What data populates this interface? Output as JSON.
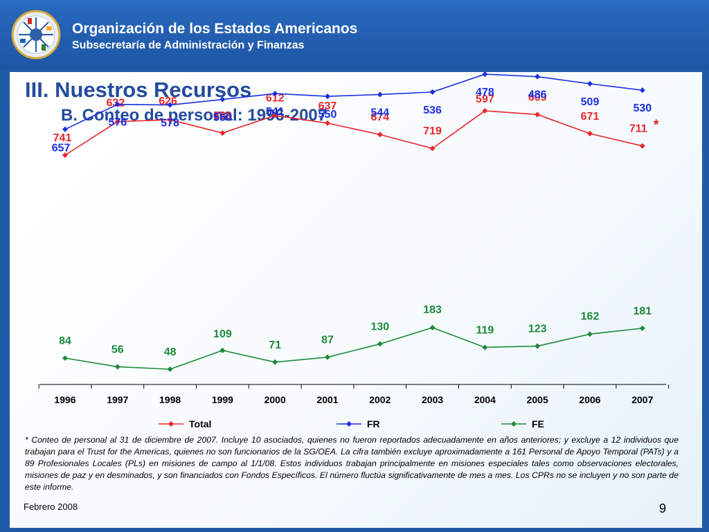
{
  "header": {
    "org_name": "Organización de los Estados Americanos",
    "org_subtitle": "Subsecretaría de Administración y Finanzas"
  },
  "slide": {
    "title": "III. Nuestros Recursos",
    "subtitle": "B. Conteo de personal: 1996-2007",
    "footnote": "* Conteo de personal al 31 de diciembre de 2007. Incluye 10 asociados, quienes no fueron reportados adecuadamente en años anteriores; y excluye a 12 individuos que trabajan para el Trust for the Americas, quienes no son funcionarios de la SG/OEA. La cifra también excluye aproximadamente a 161 Personal de Apoyo Temporal (PATs) y a 89 Profesionales Locales (PLs) en misiones de campo al 1/1/08. Estos individuos trabajan principalmente en misiones especiales tales como observaciones electorales, misiones de paz y en desminados, y son financiados con Fondos Específicos. El número fluctúa significativamente de mes a mes. Los CPRs no se incluyen y no son parte de este informe.",
    "date": "Febrero 2008",
    "page": "9"
  },
  "chart_data": {
    "type": "line",
    "categories": [
      "1996",
      "1997",
      "1998",
      "1999",
      "2000",
      "2001",
      "2002",
      "2003",
      "2004",
      "2005",
      "2006",
      "2007"
    ],
    "series": [
      {
        "name": "Total",
        "color": "#e8262c",
        "values": [
          741,
          632,
          626,
          669,
          612,
          637,
          674,
          719,
          597,
          609,
          671,
          711
        ]
      },
      {
        "name": "FR",
        "color": "#1a2ee0",
        "values": [
          657,
          576,
          578,
          560,
          541,
          550,
          544,
          536,
          478,
          486,
          509,
          530
        ]
      },
      {
        "name": "FE",
        "color": "#1e8a3a",
        "values": [
          84,
          56,
          48,
          109,
          71,
          87,
          130,
          183,
          119,
          123,
          162,
          181
        ]
      }
    ],
    "annotation": {
      "series": "Total",
      "index": 11,
      "text": "*"
    },
    "legend_position": "bottom",
    "grid": false
  }
}
